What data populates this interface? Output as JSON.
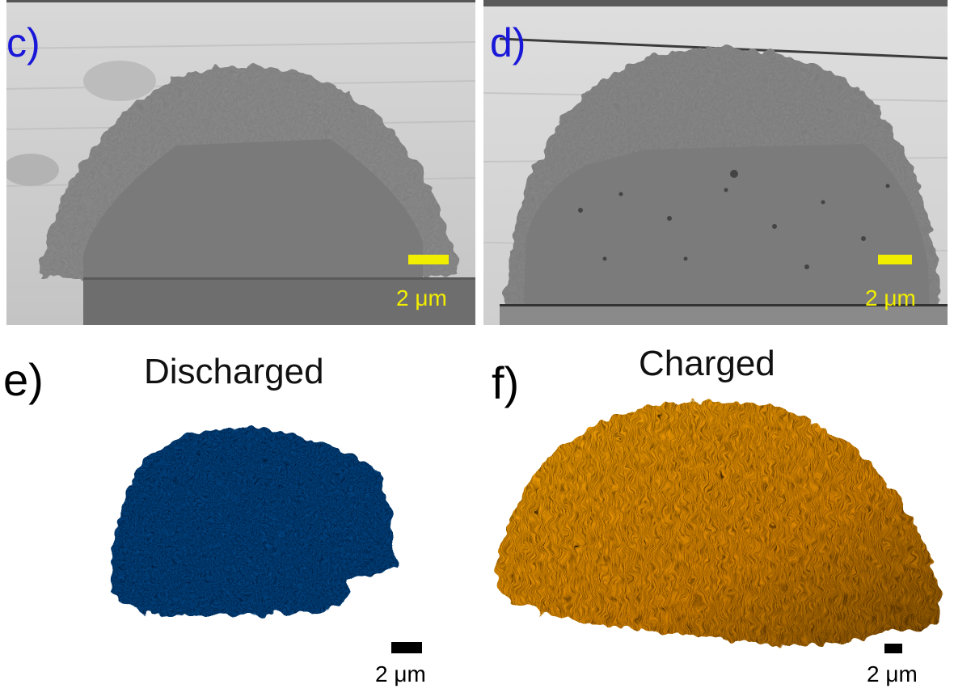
{
  "panels": {
    "c": {
      "label": "c)",
      "scale_text": "2 μm"
    },
    "d": {
      "label": "d)",
      "scale_text": "2 μm"
    },
    "e": {
      "label": "e)",
      "title": "Discharged",
      "scale_text": "2 μm"
    },
    "f": {
      "label": "f)",
      "title": "Charged",
      "scale_text": "2 μm"
    }
  },
  "colors": {
    "panel_label_top": "#1a18d8",
    "scale_bar_sem": "#f2ee00",
    "scale_bar_reconstruction": "#000000",
    "discharged": "#0f4785",
    "charged": "#e08c0a"
  }
}
